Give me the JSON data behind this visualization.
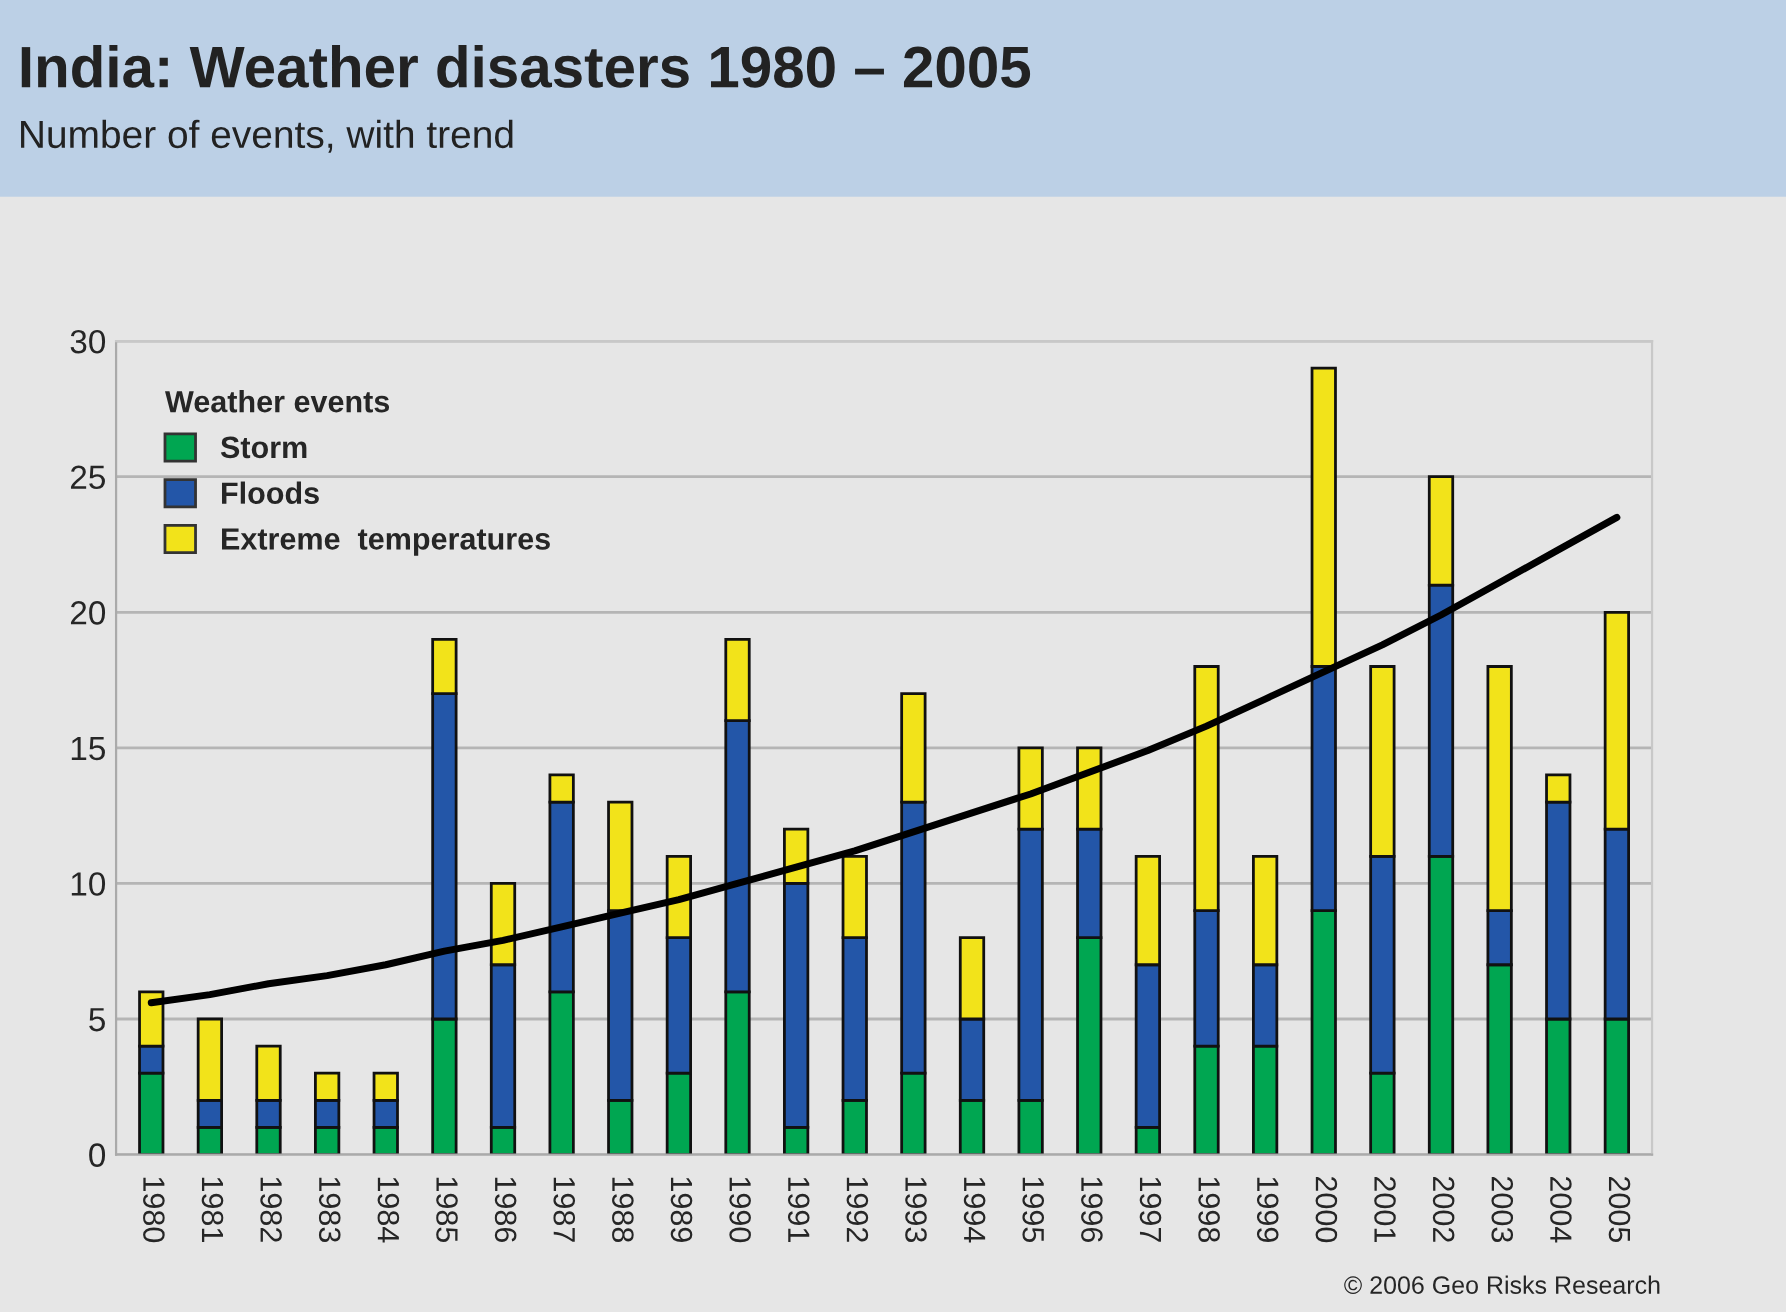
{
  "chart_data": {
    "type": "bar",
    "title": "India: Weather disasters 1980 – 2005",
    "subtitle": "Number of events, with trend",
    "categories": [
      "1980",
      "1981",
      "1982",
      "1983",
      "1984",
      "1985",
      "1986",
      "1987",
      "1988",
      "1989",
      "1990",
      "1991",
      "1992",
      "1993",
      "1994",
      "1995",
      "1996",
      "1997",
      "1998",
      "1999",
      "2000",
      "2001",
      "2002",
      "2003",
      "2004",
      "2005"
    ],
    "stacked": true,
    "series": [
      {
        "name": "Storm",
        "color": "#00a651",
        "values": [
          3,
          1,
          1,
          1,
          1,
          5,
          1,
          6,
          2,
          3,
          6,
          1,
          2,
          3,
          2,
          2,
          8,
          1,
          4,
          4,
          9,
          3,
          11,
          7,
          5,
          5
        ]
      },
      {
        "name": "Floods",
        "color": "#2356a8",
        "values": [
          1,
          1,
          1,
          1,
          1,
          12,
          6,
          7,
          7,
          5,
          10,
          9,
          6,
          10,
          3,
          10,
          4,
          6,
          5,
          3,
          9,
          8,
          10,
          2,
          8,
          7
        ]
      },
      {
        "name": "Extreme  temperatures",
        "color": "#f2e31a",
        "values": [
          2,
          3,
          2,
          1,
          1,
          2,
          3,
          1,
          4,
          3,
          3,
          2,
          3,
          4,
          3,
          3,
          3,
          4,
          9,
          4,
          11,
          7,
          4,
          9,
          1,
          8
        ]
      },
      {
        "type": "line",
        "color": "#000000",
        "values": [
          5.6,
          5.9,
          6.3,
          6.6,
          7.0,
          7.5,
          7.9,
          8.4,
          8.9,
          9.4,
          10.0,
          10.6,
          11.2,
          11.9,
          12.6,
          13.3,
          14.1,
          14.9,
          15.8,
          16.8,
          17.8,
          18.8,
          19.9,
          21.1,
          22.3,
          23.5
        ]
      }
    ],
    "legend_title": "Weather events",
    "legend": "top left",
    "ylim": [
      0,
      30
    ],
    "yticks": [
      0,
      5,
      10,
      15,
      20,
      25,
      30
    ],
    "grid": "y",
    "annotations": [
      "© 2006 Geo Risks Research"
    ]
  }
}
